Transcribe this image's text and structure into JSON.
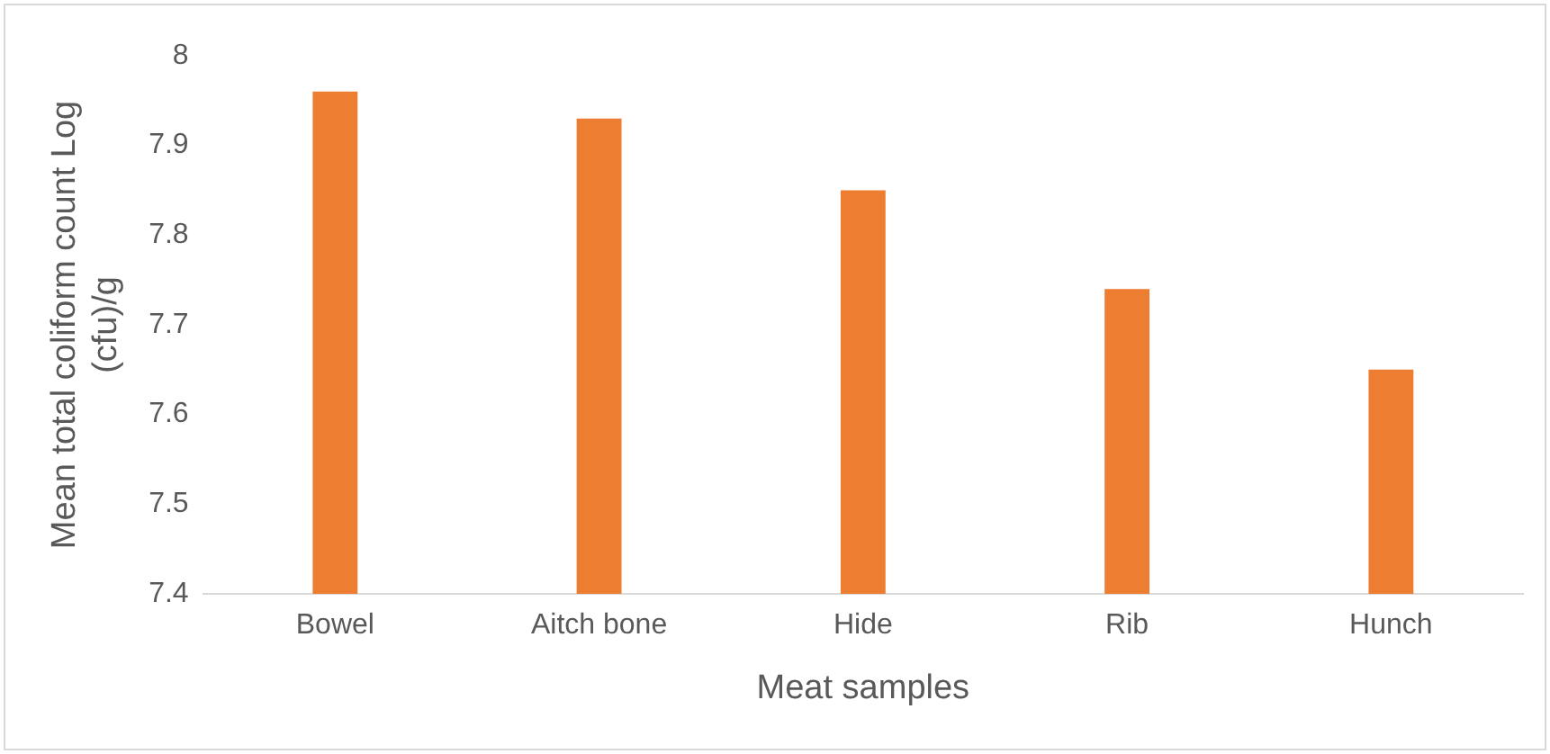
{
  "chart_data": {
    "type": "bar",
    "xlabel": "Meat samples",
    "ylabel": "Mean total coliform count Log (cfu)/g",
    "categories": [
      "Bowel",
      "Aitch bone",
      "Hide",
      "Rib",
      "Hunch"
    ],
    "values": [
      7.96,
      7.93,
      7.85,
      7.74,
      7.65
    ],
    "color": "#ed7d31",
    "ylim": [
      7.4,
      8
    ],
    "yticks": [
      7.4,
      7.5,
      7.6,
      7.7,
      7.8,
      7.9,
      8
    ],
    "grid": false,
    "legend": false
  }
}
